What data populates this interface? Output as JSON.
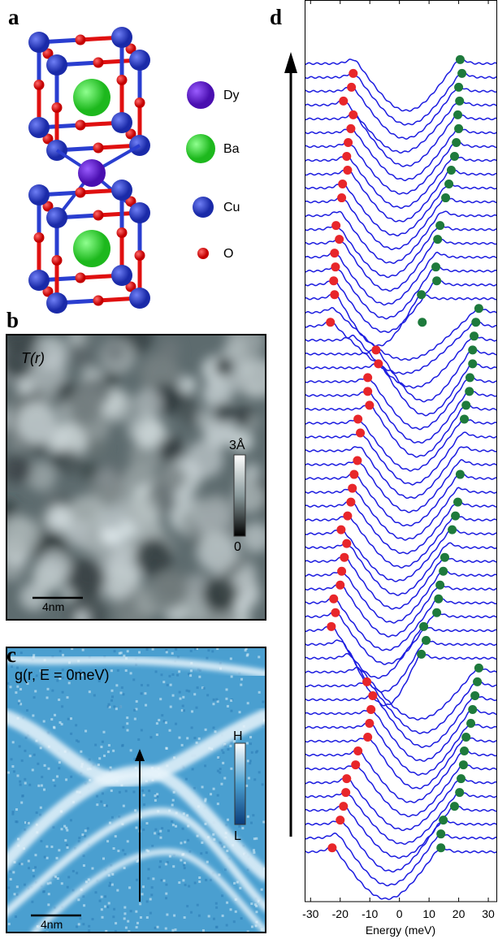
{
  "panel_labels": [
    "a",
    "b",
    "c",
    "d"
  ],
  "structure_legend": [
    "Dy",
    "Ba",
    "Cu",
    "O"
  ],
  "topograph": {
    "label": "T(r)",
    "colorbar_max": "3Å",
    "colorbar_min": "0",
    "scale": "4nm"
  },
  "conductance": {
    "label": "g(r, E = 0meV)",
    "colorbar_max": "H",
    "colorbar_min": "L",
    "scale": "4nm"
  },
  "chart_data": {
    "type": "scatter",
    "xlabel": "Energy (meV)",
    "xlim": [
      -32,
      33
    ],
    "xticks": [
      -30,
      -20,
      -10,
      0,
      10,
      20,
      30
    ],
    "ylim": [
      -3.6,
      61.6
    ],
    "line_color": "#1c1ce0",
    "series": [
      {
        "color": "#e8262a",
        "x": [
          -22.7,
          -20,
          -18.9,
          -18.1,
          -17.8,
          -14.8,
          -14,
          -10.7,
          -10.1,
          -9.6,
          -9,
          -11,
          -23,
          -21.6,
          -22.2,
          -20,
          -19.5,
          -18.6,
          -17.8,
          -19.7,
          -17.5,
          -16.4,
          -15.9,
          -15.3,
          -14.2,
          -13.2,
          -14,
          -10.1,
          -10.7,
          -10.7,
          -7.1,
          -7.9,
          -23.3,
          -21.9,
          -22.2,
          -21.6,
          -21.9,
          -20.3,
          -21.4,
          -19.5,
          -19.2,
          -17.5,
          -17.8,
          -17.3,
          -16.4,
          -15.6,
          -18.9,
          -16.2,
          -15.6
        ],
        "values": [
          0,
          2,
          3,
          4,
          5,
          6,
          7,
          8,
          9,
          10,
          11,
          12,
          16,
          17,
          18,
          19,
          20,
          21,
          22,
          23,
          24,
          25,
          26,
          27,
          28,
          30,
          31,
          32,
          33,
          34,
          35,
          36,
          38,
          40,
          41,
          42,
          43,
          44,
          45,
          47,
          48,
          49,
          50,
          51,
          52,
          53,
          54,
          55,
          56
        ]
      },
      {
        "color": "#1e7a3c",
        "x": [
          14,
          14,
          14.8,
          18.6,
          20.3,
          20.8,
          21.6,
          21.9,
          22.5,
          24.1,
          24.7,
          25.5,
          26.3,
          26.8,
          7.4,
          9,
          8.2,
          12.6,
          13.2,
          13.7,
          14.8,
          15.3,
          17.8,
          18.9,
          19.7,
          20.5,
          21.9,
          22.5,
          23.6,
          23.8,
          24.7,
          24.7,
          25.2,
          25.8,
          26.8,
          7.7,
          7.4,
          12.6,
          12.3,
          12.9,
          13.7,
          15.6,
          16.7,
          17.5,
          18.6,
          19.2,
          20,
          19.7,
          20.3,
          20,
          21.1,
          20.5
        ],
        "values": [
          0,
          1,
          2,
          3,
          4,
          5,
          6,
          7,
          8,
          9,
          10,
          11,
          12,
          13,
          14,
          15,
          16,
          17,
          18,
          19,
          20,
          21,
          23,
          24,
          25,
          27,
          31,
          32,
          33,
          34,
          35,
          36,
          37,
          38,
          39,
          38,
          40,
          41,
          42,
          44,
          45,
          47,
          48,
          49,
          50,
          51,
          52,
          53,
          54,
          55,
          56,
          57
        ]
      }
    ]
  }
}
